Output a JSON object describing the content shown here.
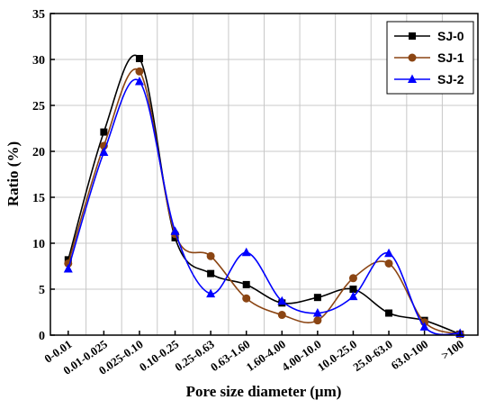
{
  "chart_data": {
    "type": "line",
    "categories": [
      "0-0.01",
      "0.01-0.025",
      "0.025-0.10",
      "0.10-0.25",
      "0.25-0.63",
      "0.63-1.60",
      "1.60-4.00",
      "4.00-10.0",
      "10.0-25.0",
      "25.0-63.0",
      "63.0-100",
      ">100"
    ],
    "xlabel": "Pore size diameter (μm)",
    "ylabel": "Ratio (%)",
    "ylim": [
      0,
      35
    ],
    "yticks": [
      "0",
      "5",
      "10",
      "15",
      "20",
      "25",
      "30",
      "35"
    ],
    "grid": true,
    "legend_position": "top-right",
    "series": [
      {
        "name": "SJ-0",
        "marker": "square",
        "color": "#000000",
        "values": [
          8.2,
          22.1,
          30.1,
          10.6,
          6.7,
          5.5,
          3.5,
          4.1,
          5.0,
          2.4,
          1.6,
          0.1
        ]
      },
      {
        "name": "SJ-1",
        "marker": "circle",
        "color": "#8b4513",
        "values": [
          7.8,
          20.6,
          28.7,
          11.0,
          8.6,
          4.0,
          2.2,
          1.6,
          6.2,
          7.8,
          1.4,
          0.1
        ]
      },
      {
        "name": "SJ-2",
        "marker": "triangle",
        "color": "#0000ff",
        "values": [
          7.2,
          19.9,
          27.6,
          11.3,
          4.5,
          9.0,
          3.7,
          2.4,
          4.2,
          8.9,
          0.9,
          0.2
        ]
      }
    ]
  }
}
